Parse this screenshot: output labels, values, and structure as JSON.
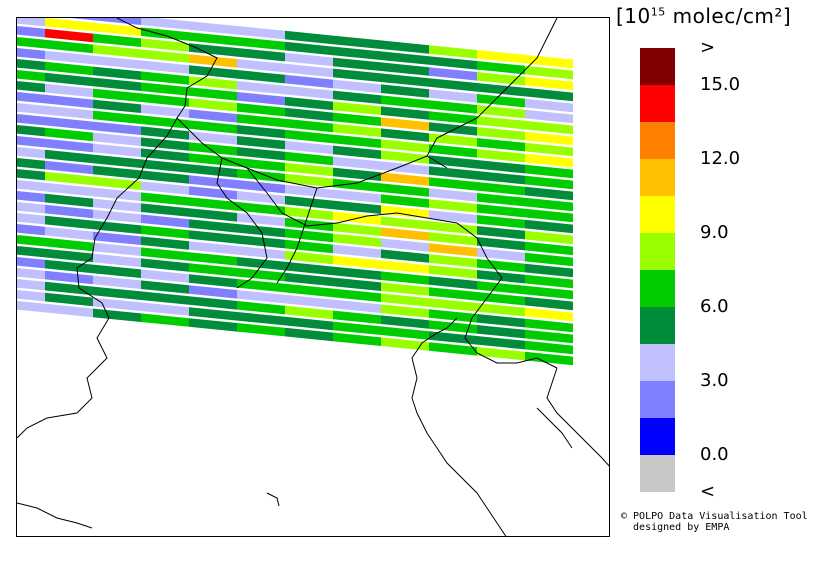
{
  "legend": {
    "title_prefix": "[10",
    "title_exp": "15",
    "title_suffix": " molec/cm²]",
    "colors": [
      "#800000",
      "#ff0000",
      "#ff8000",
      "#ffc000",
      "#ffff00",
      "#99ff00",
      "#00cc00",
      "#008c3a",
      "#c0c0ff",
      "#8080ff",
      "#0000ff",
      "#c8c8c8"
    ],
    "labels": [
      {
        "text": ">",
        "after": 0
      },
      {
        "text": "15.0",
        "after": 1
      },
      {
        "text": "12.0",
        "after": 3
      },
      {
        "text": "9.0",
        "after": 5
      },
      {
        "text": "6.0",
        "after": 7
      },
      {
        "text": "3.0",
        "after": 9
      },
      {
        "text": "0.0",
        "after": 11
      },
      {
        "text": "<",
        "after": 12
      }
    ]
  },
  "swaths": [
    "999888777544",
    "844666777765",
    "916577877954",
    "665538877777",
    "988877987868",
    "767658876658",
    "677669757655",
    "786656763754",
    "997896657565",
    "886667665654",
    "999787875776",
    "768767688776",
    "998766573667",
    "877776566866",
    "797799886566",
    "755898774867",
    "888666545575",
    "978778653576",
    "898977658386",
    "877677687567",
    "989788544576",
    "668667776766",
    "778766775667",
    "977876665554",
    "898798885676",
    "877776567676",
    "878877766776",
    "887676765656"
  ],
  "credit": {
    "line1": "© POLPO Data Visualisation Tool",
    "line2": "  designed by EMPA"
  }
}
